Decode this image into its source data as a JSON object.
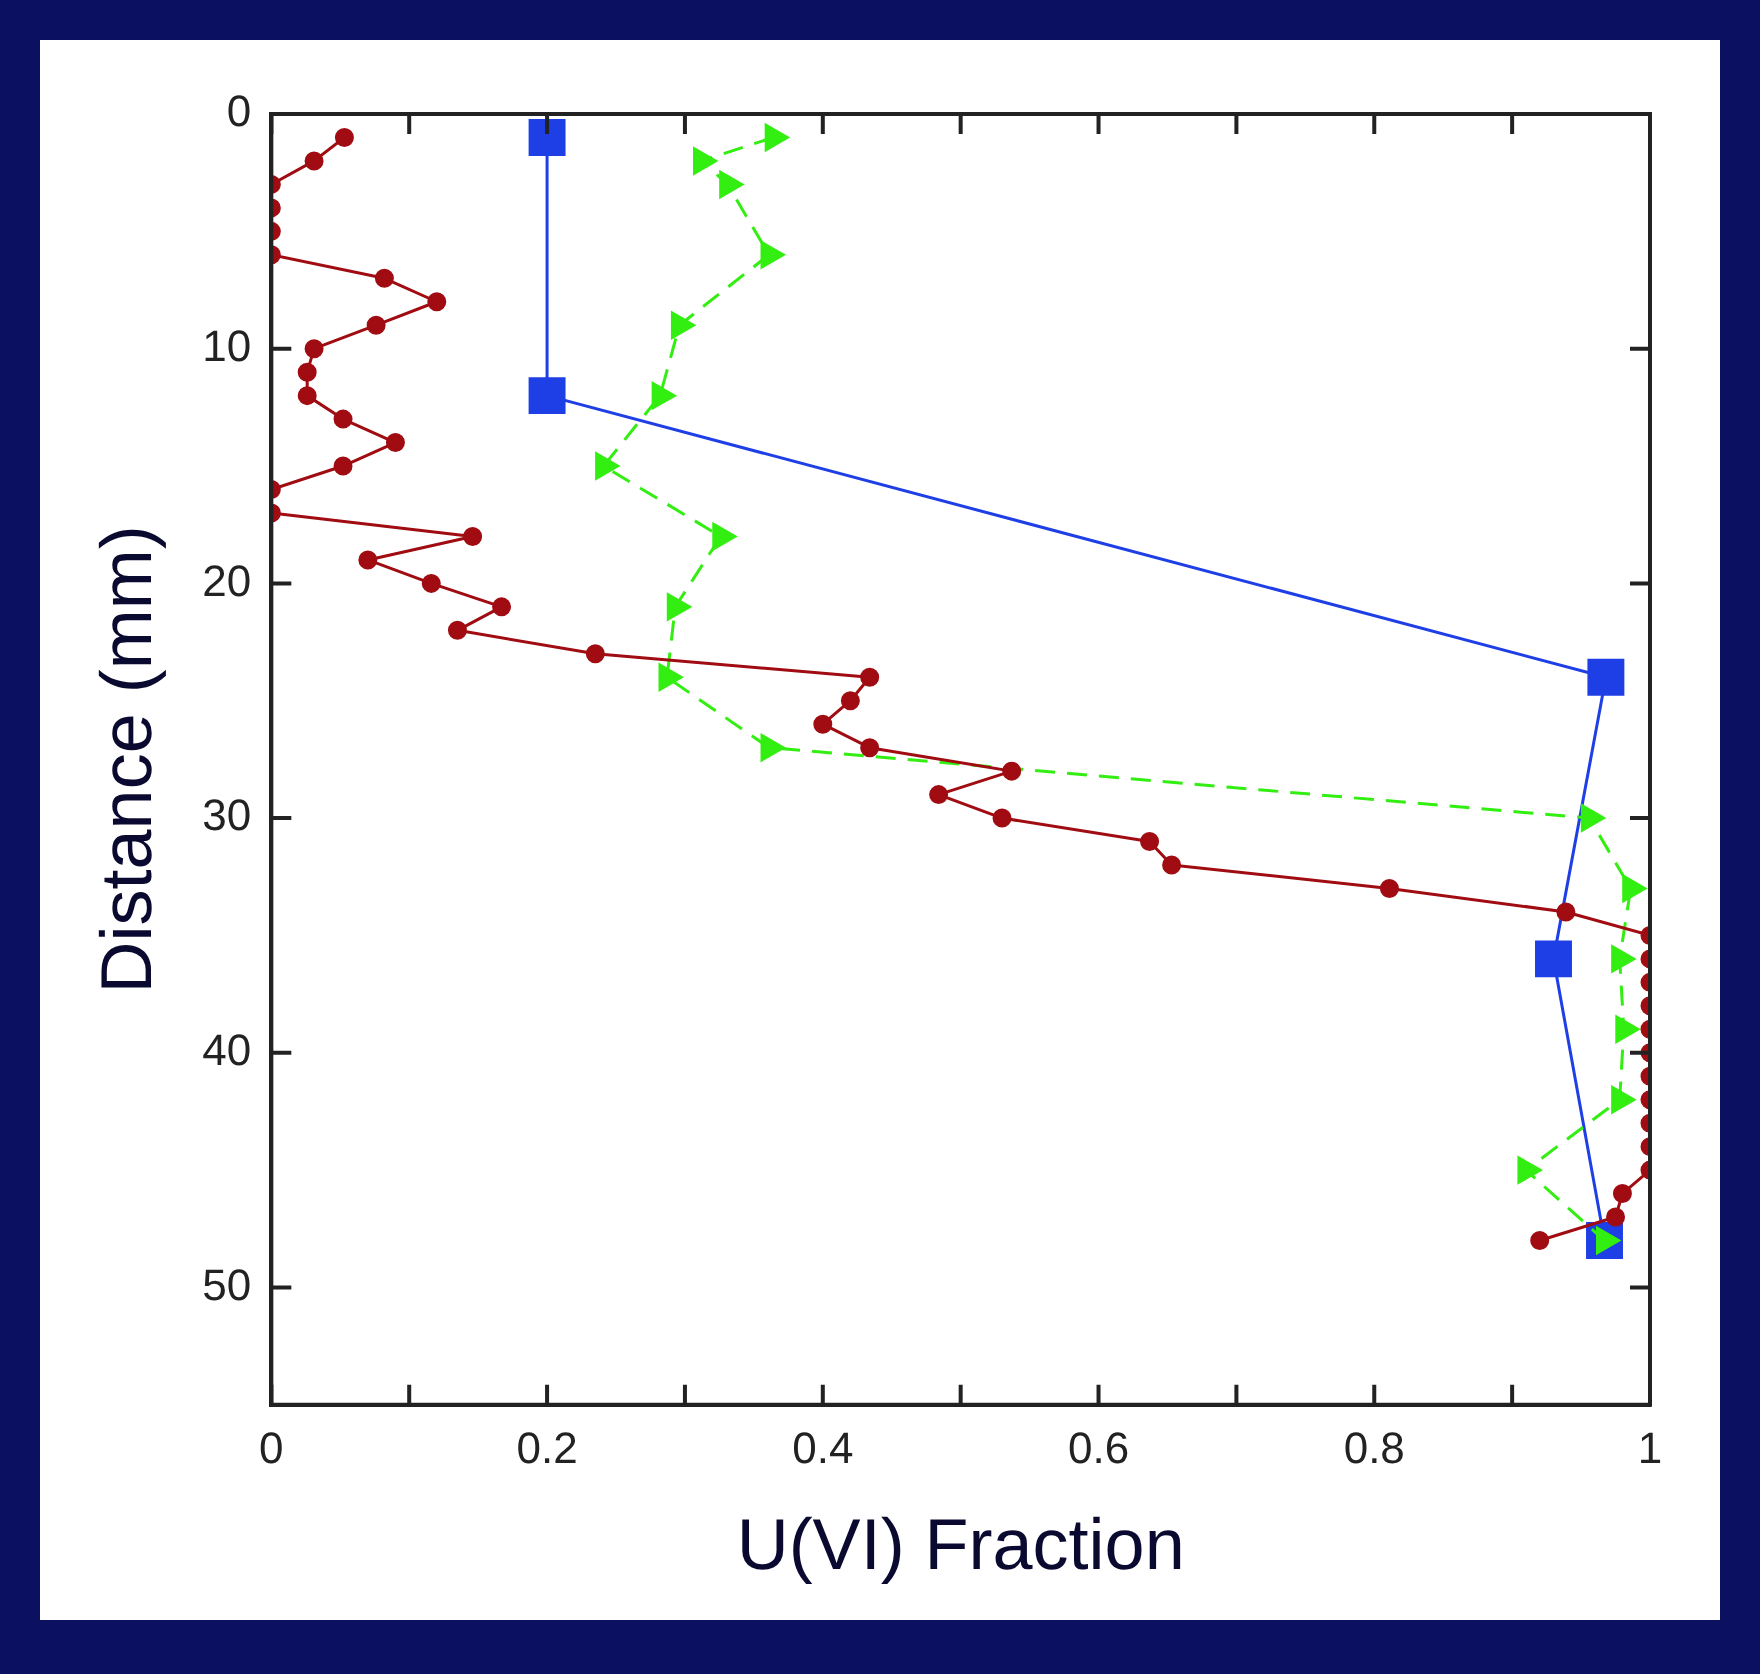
{
  "chart_data": {
    "type": "line",
    "xlabel": "U(VI) Fraction",
    "ylabel": "Distance (mm)",
    "xlim": [
      0,
      1
    ],
    "xticks": [
      0,
      {
        "value": 0.1,
        "label": null
      },
      0.2,
      {
        "value": 0.3,
        "label": null
      },
      0.4,
      {
        "value": 0.5,
        "label": null
      },
      0.6,
      {
        "value": 0.7,
        "label": null
      },
      0.8,
      {
        "value": 0.9,
        "label": null
      },
      1
    ],
    "ylim": [
      55,
      0
    ],
    "yticks": [
      0,
      10,
      20,
      30,
      40,
      50
    ],
    "grid": false,
    "legend": false,
    "series": [
      {
        "color": "#a00c12",
        "marker": "circle",
        "line_style": "solid",
        "values": [
          1,
          2,
          3,
          4,
          5,
          6,
          7,
          8,
          9,
          10,
          11,
          12,
          13,
          14,
          15,
          16,
          17,
          18,
          19,
          20,
          21,
          22,
          23,
          24,
          25,
          26,
          27,
          28,
          29,
          30,
          31,
          32,
          33,
          34,
          35,
          36,
          37,
          38,
          39,
          40,
          41,
          42,
          43,
          44,
          45,
          46,
          47,
          48
        ],
        "x": [
          0.053,
          0.031,
          0,
          0,
          0,
          0,
          0.082,
          0.12,
          0.076,
          0.031,
          0.026,
          0.026,
          0.052,
          0.09,
          0.052,
          0,
          0,
          0.146,
          0.07,
          0.116,
          0.167,
          0.135,
          0.235,
          0.434,
          0.42,
          0.4,
          0.434,
          0.537,
          0.484,
          0.53,
          0.637,
          0.653,
          0.811,
          0.939,
          1,
          1,
          1,
          1,
          1,
          1,
          1,
          1,
          1,
          1,
          1,
          0.98,
          0.975,
          0.92
        ]
      },
      {
        "color": "#33ee11",
        "marker": "triangle",
        "line_style": "dashed",
        "values": [
          1,
          2,
          3,
          6,
          9,
          12,
          15,
          18,
          21,
          24,
          27,
          30,
          33,
          36,
          39,
          42,
          45,
          48
        ],
        "x": [
          0.364,
          0.312,
          0.331,
          0.361,
          0.296,
          0.282,
          0.241,
          0.326,
          0.293,
          0.287,
          0.361,
          0.956,
          0.986,
          0.978,
          0.981,
          0.978,
          0.91,
          0.967
        ]
      },
      {
        "color": "#1f3fe6",
        "marker": "square",
        "line_style": "solid",
        "values": [
          1,
          12,
          24,
          36,
          48
        ],
        "x": [
          0.2,
          0.2,
          0.968,
          0.93,
          0.967
        ]
      }
    ]
  }
}
